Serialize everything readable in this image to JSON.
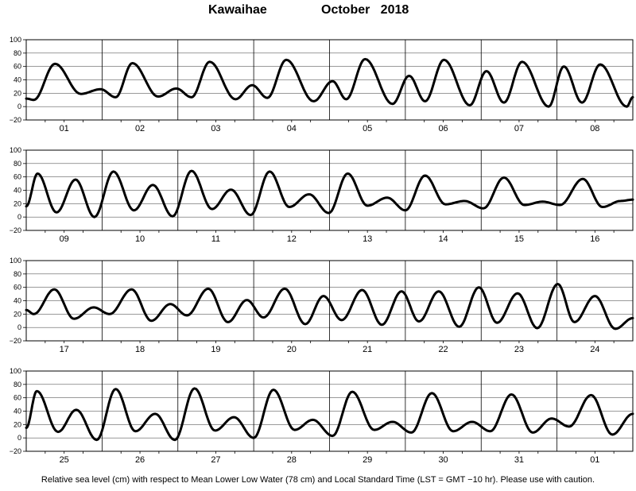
{
  "title": {
    "station": "Kawaihae",
    "month": "October   2018"
  },
  "caption": "Relative sea level (cm) with respect to Mean Lower Low Water (78 cm) and Local Standard Time (LST = GMT −10 hr). Please use with caution.",
  "chart_data": {
    "type": "line",
    "ylim": [
      -20,
      100
    ],
    "yticks": [
      "100",
      "80",
      "60",
      "40",
      "20",
      "0",
      "−20"
    ],
    "grid": true,
    "panels": [
      {
        "days": [
          "01",
          "02",
          "03",
          "04",
          "05",
          "06",
          "07",
          "08"
        ],
        "extrema": [
          [
            0,
            12
          ],
          [
            0.1,
            10
          ],
          [
            0.38,
            64
          ],
          [
            0.72,
            19
          ],
          [
            0.98,
            26
          ],
          [
            1.18,
            14
          ],
          [
            1.4,
            65
          ],
          [
            1.74,
            15
          ],
          [
            1.98,
            27
          ],
          [
            2.18,
            14
          ],
          [
            2.42,
            67
          ],
          [
            2.76,
            11
          ],
          [
            2.98,
            32
          ],
          [
            3.18,
            13
          ],
          [
            3.43,
            70
          ],
          [
            3.79,
            8
          ],
          [
            4.04,
            38
          ],
          [
            4.22,
            11
          ],
          [
            4.47,
            71
          ],
          [
            4.83,
            4
          ],
          [
            5.05,
            46
          ],
          [
            5.26,
            8
          ],
          [
            5.51,
            70
          ],
          [
            5.85,
            2
          ],
          [
            6.07,
            53
          ],
          [
            6.3,
            6
          ],
          [
            6.54,
            67
          ],
          [
            6.89,
            0
          ],
          [
            7.09,
            60
          ],
          [
            7.33,
            6
          ],
          [
            7.57,
            63
          ],
          [
            7.92,
            0
          ],
          [
            8,
            14
          ]
        ]
      },
      {
        "days": [
          "09",
          "10",
          "11",
          "12",
          "13",
          "14",
          "15",
          "16"
        ],
        "extrema": [
          [
            0,
            16
          ],
          [
            0.15,
            65
          ],
          [
            0.4,
            7
          ],
          [
            0.65,
            56
          ],
          [
            0.9,
            0
          ],
          [
            1.15,
            68
          ],
          [
            1.42,
            10
          ],
          [
            1.67,
            48
          ],
          [
            1.93,
            1
          ],
          [
            2.18,
            69
          ],
          [
            2.45,
            12
          ],
          [
            2.7,
            41
          ],
          [
            2.96,
            3
          ],
          [
            3.21,
            68
          ],
          [
            3.47,
            15
          ],
          [
            3.73,
            34
          ],
          [
            3.99,
            6
          ],
          [
            4.24,
            65
          ],
          [
            4.5,
            17
          ],
          [
            4.76,
            29
          ],
          [
            5,
            10
          ],
          [
            5.26,
            62
          ],
          [
            5.53,
            19
          ],
          [
            5.78,
            24
          ],
          [
            6.03,
            13
          ],
          [
            6.3,
            59
          ],
          [
            6.57,
            18
          ],
          [
            6.81,
            23
          ],
          [
            7.04,
            18
          ],
          [
            7.34,
            57
          ],
          [
            7.6,
            15
          ],
          [
            7.84,
            24
          ],
          [
            8,
            26
          ]
        ]
      },
      {
        "days": [
          "17",
          "18",
          "19",
          "20",
          "21",
          "22",
          "23",
          "24"
        ],
        "extrema": [
          [
            0,
            26
          ],
          [
            0.1,
            20
          ],
          [
            0.37,
            57
          ],
          [
            0.63,
            13
          ],
          [
            0.89,
            30
          ],
          [
            1.1,
            20
          ],
          [
            1.39,
            57
          ],
          [
            1.65,
            10
          ],
          [
            1.9,
            35
          ],
          [
            2.12,
            18
          ],
          [
            2.4,
            58
          ],
          [
            2.66,
            8
          ],
          [
            2.91,
            41
          ],
          [
            3.13,
            15
          ],
          [
            3.41,
            58
          ],
          [
            3.68,
            5
          ],
          [
            3.92,
            47
          ],
          [
            4.16,
            11
          ],
          [
            4.43,
            56
          ],
          [
            4.69,
            4
          ],
          [
            4.95,
            54
          ],
          [
            5.18,
            9
          ],
          [
            5.44,
            54
          ],
          [
            5.71,
            1
          ],
          [
            5.97,
            60
          ],
          [
            6.21,
            7
          ],
          [
            6.48,
            51
          ],
          [
            6.74,
            -1
          ],
          [
            7.01,
            65
          ],
          [
            7.23,
            8
          ],
          [
            7.5,
            47
          ],
          [
            7.77,
            -2
          ],
          [
            8,
            14
          ]
        ]
      },
      {
        "days": [
          "25",
          "26",
          "27",
          "28",
          "29",
          "30",
          "31",
          "01"
        ],
        "extrema": [
          [
            0,
            15
          ],
          [
            0.14,
            70
          ],
          [
            0.42,
            9
          ],
          [
            0.66,
            42
          ],
          [
            0.93,
            -3
          ],
          [
            1.18,
            73
          ],
          [
            1.44,
            10
          ],
          [
            1.7,
            36
          ],
          [
            1.96,
            -3
          ],
          [
            2.22,
            74
          ],
          [
            2.49,
            11
          ],
          [
            2.74,
            31
          ],
          [
            3.0,
            0
          ],
          [
            3.26,
            72
          ],
          [
            3.54,
            12
          ],
          [
            3.78,
            27
          ],
          [
            4.04,
            3
          ],
          [
            4.3,
            69
          ],
          [
            4.59,
            12
          ],
          [
            4.83,
            24
          ],
          [
            5.08,
            8
          ],
          [
            5.35,
            67
          ],
          [
            5.63,
            10
          ],
          [
            5.88,
            24
          ],
          [
            6.12,
            10
          ],
          [
            6.4,
            65
          ],
          [
            6.68,
            8
          ],
          [
            6.93,
            29
          ],
          [
            7.16,
            17
          ],
          [
            7.45,
            64
          ],
          [
            7.73,
            5
          ],
          [
            8,
            36
          ]
        ]
      }
    ]
  }
}
